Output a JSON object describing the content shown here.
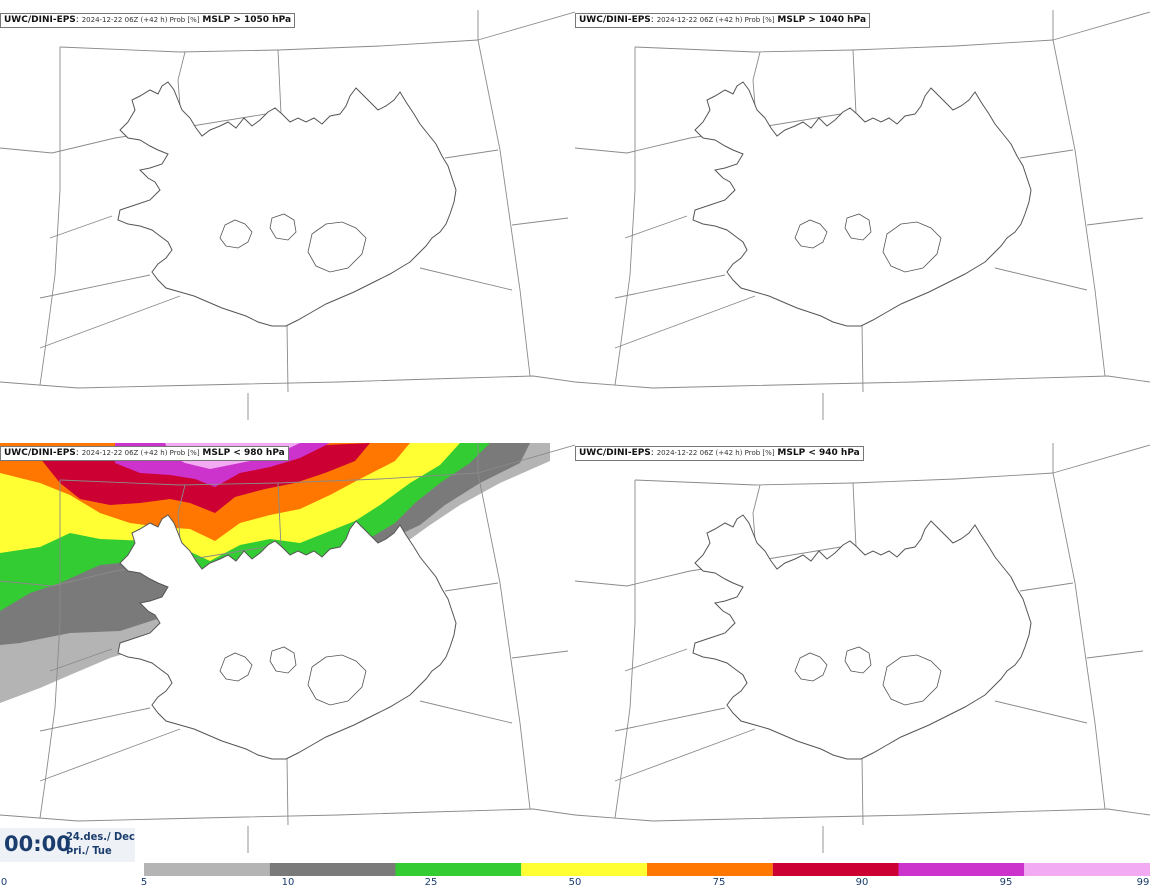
{
  "panels": [
    {
      "model": "UWC/DINI-EPS",
      "run": "2024-12-22 06Z (+42 h) Prob [%]",
      "variable": "MSLP > 1050 hPa"
    },
    {
      "model": "UWC/DINI-EPS",
      "run": "2024-12-22 06Z (+42 h) Prob [%]",
      "variable": "MSLP > 1040 hPa"
    },
    {
      "model": "UWC/DINI-EPS",
      "run": "2024-12-22 06Z (+42 h) Prob [%]",
      "variable": "MSLP < 980 hPa"
    },
    {
      "model": "UWC/DINI-EPS",
      "run": "2024-12-22 06Z (+42 h) Prob [%]",
      "variable": "MSLP < 940 hPa"
    }
  ],
  "valid_time": {
    "clock": "00:00",
    "date_line1": "24.des./ Dec",
    "date_line2": "Þri./ Tue"
  },
  "colorbar": {
    "labels": [
      "0",
      "5",
      "10",
      "25",
      "50",
      "75",
      "90",
      "95",
      "99"
    ],
    "colors": [
      "#b4b4b4",
      "#7a7a7a",
      "#33cc33",
      "#ffff33",
      "#ff7700",
      "#cc0033",
      "#cc33cc",
      "#f2aaf2"
    ]
  }
}
